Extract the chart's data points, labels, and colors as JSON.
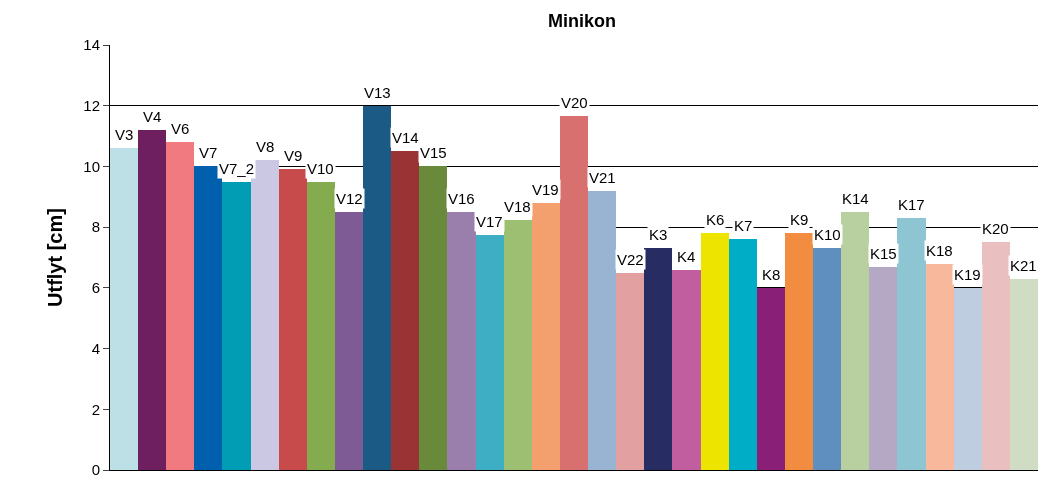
{
  "chart_data": {
    "type": "bar",
    "title": "Minikon",
    "ylabel": "Utflyt [cm]",
    "categories": [
      "V3",
      "V4",
      "V6",
      "V7",
      "V7_2",
      "V8",
      "V9",
      "V10",
      "V12",
      "V13",
      "V14",
      "V15",
      "V16",
      "V17",
      "V18",
      "V19",
      "V20",
      "V21",
      "V22",
      "K3",
      "K4",
      "K6",
      "K7",
      "K8",
      "K9",
      "K10",
      "K14",
      "K15",
      "K17",
      "K18",
      "K19",
      "K20",
      "K21"
    ],
    "values": [
      10.6,
      11.2,
      10.8,
      10.0,
      9.5,
      10.2,
      9.9,
      9.5,
      8.5,
      12.0,
      10.5,
      10.0,
      8.5,
      7.75,
      8.25,
      8.8,
      11.65,
      9.2,
      6.5,
      7.3,
      6.6,
      7.8,
      7.6,
      6.0,
      7.8,
      7.3,
      8.5,
      6.7,
      8.3,
      6.8,
      6.0,
      7.5,
      6.3
    ],
    "colors": [
      "#bde0e6",
      "#6d1f5f",
      "#f07a80",
      "#0060ad",
      "#009db4",
      "#cbc8e4",
      "#c84b4b",
      "#84ac4f",
      "#7f5b96",
      "#1b5a85",
      "#9a3434",
      "#688a3a",
      "#9a7eab",
      "#3eaec5",
      "#9dbf72",
      "#f4a06e",
      "#d87070",
      "#99b3d2",
      "#e3a0a0",
      "#272d62",
      "#c15ea0",
      "#ede400",
      "#00adc6",
      "#8a1f78",
      "#f28c41",
      "#5f8fbf",
      "#b8cfa0",
      "#b5a8c5",
      "#8dc5d3",
      "#f8b89c",
      "#becddf",
      "#e9bfc0",
      "#d0ddc4"
    ],
    "ylim": [
      0,
      14
    ],
    "yticks": [
      0,
      2,
      4,
      6,
      8,
      10,
      12,
      14
    ],
    "grid": "y",
    "tick_labels": "y"
  }
}
